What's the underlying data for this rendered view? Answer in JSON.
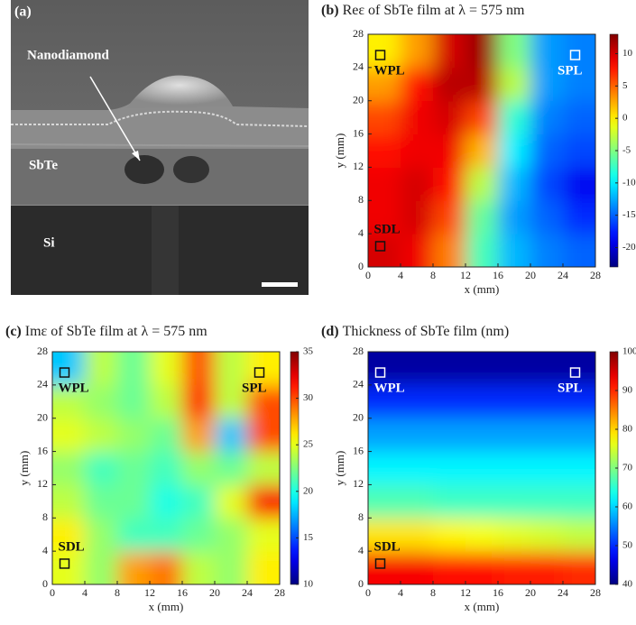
{
  "image_panel": {
    "label": "(a)",
    "annotations": [
      "Nanodiamond",
      "SbTe",
      "Si"
    ]
  },
  "chart_data": [
    {
      "type": "heatmap",
      "panel_label": "(b)",
      "title": "Reε of SbTe film at λ = 575 nm",
      "xlabel": "x (mm)",
      "ylabel": "y (mm)",
      "xlim": [
        0,
        28
      ],
      "ylim": [
        0,
        28
      ],
      "xticks": [
        0,
        4,
        8,
        12,
        16,
        20,
        24,
        28
      ],
      "yticks": [
        0,
        4,
        8,
        12,
        16,
        20,
        24,
        28
      ],
      "x": [
        2,
        6,
        10,
        14,
        18,
        22,
        26
      ],
      "y": [
        2,
        6,
        10,
        14,
        18,
        22,
        26
      ],
      "z": [
        [
          10,
          9,
          4,
          -7,
          -12,
          -14,
          -15
        ],
        [
          9,
          10,
          6,
          -6,
          -13,
          -15,
          -17
        ],
        [
          9,
          10,
          8,
          -3,
          -12,
          -16,
          -19
        ],
        [
          8,
          9,
          9,
          2,
          -10,
          -15,
          -16
        ],
        [
          6,
          9,
          10,
          6,
          -8,
          -14,
          -15
        ],
        [
          3,
          8,
          11,
          11,
          -3,
          -13,
          -14
        ],
        [
          0,
          3,
          10,
          12,
          -5,
          -13,
          -14
        ]
      ],
      "clim": [
        -23,
        13
      ],
      "cticks": [
        -20,
        -15,
        -10,
        -5,
        0,
        5,
        10
      ],
      "colormap": "jet",
      "markers": [
        {
          "label": "WPL",
          "x": 1.5,
          "y": 25.5,
          "color": "#111111"
        },
        {
          "label": "SPL",
          "x": 25.5,
          "y": 25.5,
          "color": "#ffffff"
        },
        {
          "label": "SDL",
          "x": 1.5,
          "y": 2.5,
          "color": "#111111"
        }
      ]
    },
    {
      "type": "heatmap",
      "panel_label": "(c)",
      "title": "Imε of SbTe film at λ = 575 nm",
      "xlabel": "x (mm)",
      "ylabel": "y (mm)",
      "xlim": [
        0,
        28
      ],
      "ylim": [
        0,
        28
      ],
      "xticks": [
        0,
        4,
        8,
        12,
        16,
        20,
        24,
        28
      ],
      "yticks": [
        0,
        4,
        8,
        12,
        16,
        20,
        24,
        28
      ],
      "x": [
        2,
        6,
        10,
        14,
        18,
        22,
        26
      ],
      "y": [
        2,
        6,
        10,
        14,
        18,
        22,
        26
      ],
      "z": [
        [
          25,
          23,
          28,
          29,
          24,
          23,
          26
        ],
        [
          26,
          23,
          21,
          21,
          22,
          23,
          25
        ],
        [
          24,
          22,
          22,
          20,
          21,
          25,
          32
        ],
        [
          23,
          21,
          22,
          21,
          23,
          22,
          24
        ],
        [
          25,
          24,
          23,
          22,
          28,
          18,
          30
        ],
        [
          24,
          23,
          22,
          24,
          31,
          24,
          30
        ],
        [
          18,
          24,
          22,
          25,
          30,
          24,
          26
        ]
      ],
      "clim": [
        10,
        35
      ],
      "cticks": [
        10,
        15,
        20,
        25,
        30,
        35
      ],
      "colormap": "jet",
      "markers": [
        {
          "label": "WPL",
          "x": 1.5,
          "y": 25.5,
          "color": "#111111"
        },
        {
          "label": "SPL",
          "x": 25.5,
          "y": 25.5,
          "color": "#111111"
        },
        {
          "label": "SDL",
          "x": 1.5,
          "y": 2.5,
          "color": "#111111"
        }
      ]
    },
    {
      "type": "heatmap",
      "panel_label": "(d)",
      "title": "Thickness of SbTe film (nm)",
      "xlabel": "x (mm)",
      "ylabel": "y (mm)",
      "xlim": [
        0,
        28
      ],
      "ylim": [
        0,
        28
      ],
      "xticks": [
        0,
        4,
        8,
        12,
        16,
        20,
        24,
        28
      ],
      "yticks": [
        0,
        4,
        8,
        12,
        16,
        20,
        24,
        28
      ],
      "x": [
        2,
        6,
        10,
        14,
        18,
        22,
        26
      ],
      "y": [
        2,
        6,
        10,
        14,
        18,
        22,
        26
      ],
      "z": [
        [
          93,
          93,
          92,
          92,
          91,
          91,
          90
        ],
        [
          79,
          79,
          78,
          77,
          76,
          75,
          74
        ],
        [
          67,
          67,
          66,
          66,
          66,
          66,
          66
        ],
        [
          62,
          62,
          62,
          62,
          62,
          62,
          62
        ],
        [
          57,
          57,
          57,
          57,
          57,
          57,
          57
        ],
        [
          50,
          50,
          50,
          50,
          50,
          50,
          50
        ],
        [
          42,
          42,
          42,
          42,
          42,
          42,
          42
        ]
      ],
      "clim": [
        40,
        100
      ],
      "cticks": [
        40,
        50,
        60,
        70,
        80,
        90,
        100
      ],
      "colormap": "jet",
      "markers": [
        {
          "label": "WPL",
          "x": 1.5,
          "y": 25.5,
          "color": "#ffffff"
        },
        {
          "label": "SPL",
          "x": 25.5,
          "y": 25.5,
          "color": "#ffffff"
        },
        {
          "label": "SDL",
          "x": 1.5,
          "y": 2.5,
          "color": "#111111"
        }
      ]
    }
  ]
}
